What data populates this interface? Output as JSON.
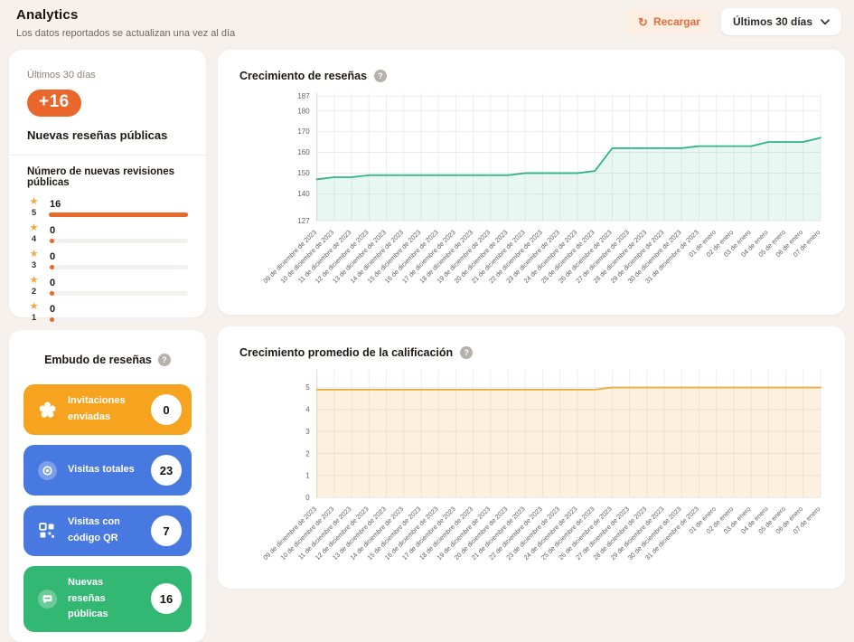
{
  "header": {
    "title": "Analytics",
    "subtitle": "Los datos reportados se actualizan una vez al día",
    "reload_label": "Recargar",
    "period_label": "Últimos 30 días"
  },
  "summary_card": {
    "period": "Últimos 30 días",
    "delta": "+16",
    "title": "Nuevas reseñas públicas",
    "breakdown_title": "Número de nuevas revisiones públicas",
    "ratings": [
      {
        "stars": "5",
        "count": "16",
        "pct": 100
      },
      {
        "stars": "4",
        "count": "0",
        "pct": 0
      },
      {
        "stars": "3",
        "count": "0",
        "pct": 0
      },
      {
        "stars": "2",
        "count": "0",
        "pct": 0
      },
      {
        "stars": "1",
        "count": "0",
        "pct": 0
      }
    ]
  },
  "funnel_card": {
    "title": "Embudo de reseñas",
    "items": [
      {
        "label": "Invitaciones enviadas",
        "value": "0",
        "color": "#f6a41f",
        "icon": "flower"
      },
      {
        "label": "Visitas totales",
        "value": "23",
        "color": "#4779e0",
        "icon": "eye"
      },
      {
        "label": "Visitas con código QR",
        "value": "7",
        "color": "#4779e0",
        "icon": "qr"
      },
      {
        "label": "Nuevas reseñas públicas",
        "value": "16",
        "color": "#33b873",
        "icon": "chat"
      }
    ]
  },
  "colors": {
    "accent_orange": "#ea672b",
    "star_amber": "#f3a83c",
    "page_background": "#f6f1ec"
  },
  "chart_data": [
    {
      "type": "area",
      "title": "Crecimiento de reseñas",
      "x": [
        "09 de diciembre de 2023",
        "10 de diciembre de 2023",
        "11 de diciembre de 2023",
        "12 de diciembre de 2023",
        "13 de diciembre de 2023",
        "14 de diciembre de 2023",
        "15 de diciembre de 2023",
        "16 de diciembre de 2023",
        "17 de diciembre de 2023",
        "18 de diciembre de 2023",
        "19 de diciembre de 2023",
        "20 de diciembre de 2023",
        "21 de diciembre de 2023",
        "22 de diciembre de 2023",
        "23 de diciembre de 2023",
        "24 de diciembre de 2023",
        "25 de diciembre de 2023",
        "26 de diciembre de 2023",
        "27 de diciembre de 2023",
        "28 de diciembre de 2023",
        "29 de diciembre de 2023",
        "30 de diciembre de 2023",
        "31 de diciembre de 2023",
        "01 de enero",
        "02 de enero",
        "03 de enero",
        "04 de enero",
        "05 de enero",
        "06 de enero",
        "07 de enero"
      ],
      "values": [
        147,
        148,
        148,
        149,
        149,
        149,
        149,
        149,
        149,
        149,
        149,
        149,
        150,
        150,
        150,
        150,
        151,
        162,
        162,
        162,
        162,
        162,
        163,
        163,
        163,
        163,
        165,
        165,
        165,
        167
      ],
      "yticks": [
        187,
        180,
        170,
        160,
        150,
        140,
        127
      ],
      "ylim": [
        127,
        188.5
      ],
      "grid": true,
      "legend": "none",
      "xlabel": "",
      "ylabel": "",
      "line_color": "#2eb487",
      "fill_color": "rgba(46,180,135,0.11)"
    },
    {
      "type": "area",
      "title": "Crecimiento promedio de la calificación",
      "x": [
        "09 de diciembre de 2023",
        "10 de diciembre de 2023",
        "11 de diciembre de 2023",
        "12 de diciembre de 2023",
        "13 de diciembre de 2023",
        "14 de diciembre de 2023",
        "15 de diciembre de 2023",
        "16 de diciembre de 2023",
        "17 de diciembre de 2023",
        "18 de diciembre de 2023",
        "19 de diciembre de 2023",
        "20 de diciembre de 2023",
        "21 de diciembre de 2023",
        "22 de diciembre de 2023",
        "23 de diciembre de 2023",
        "24 de diciembre de 2023",
        "25 de diciembre de 2023",
        "26 de diciembre de 2023",
        "27 de diciembre de 2023",
        "28 de diciembre de 2023",
        "29 de diciembre de 2023",
        "30 de diciembre de 2023",
        "31 de diciembre de 2023",
        "01 de enero",
        "02 de enero",
        "03 de enero",
        "04 de enero",
        "05 de enero",
        "06 de enero",
        "07 de enero"
      ],
      "values": [
        4.9,
        4.9,
        4.9,
        4.9,
        4.9,
        4.9,
        4.9,
        4.9,
        4.9,
        4.9,
        4.9,
        4.9,
        4.9,
        4.9,
        4.9,
        4.9,
        4.9,
        5,
        5,
        5,
        5,
        5,
        5,
        5,
        5,
        5,
        5,
        5,
        5,
        5
      ],
      "yticks": [
        5,
        4,
        3,
        2,
        1,
        0
      ],
      "ylim": [
        0,
        5.8
      ],
      "grid": true,
      "legend": "none",
      "xlabel": "",
      "ylabel": "",
      "line_color": "#efa63a",
      "fill_color": "rgba(239,166,58,0.16)"
    }
  ]
}
